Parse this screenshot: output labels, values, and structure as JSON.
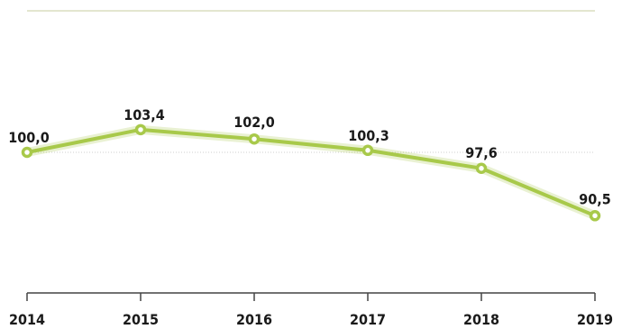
{
  "chart_data": {
    "type": "line",
    "title": "",
    "xlabel": "",
    "ylabel": "",
    "categories": [
      "2014",
      "2015",
      "2016",
      "2017",
      "2018",
      "2019"
    ],
    "series": [
      {
        "values": [
          100.0,
          103.4,
          102.0,
          100.3,
          97.6,
          90.5
        ],
        "labels": [
          "100,0",
          "103,4",
          "102,0",
          "100,3",
          "97,6",
          "90,5"
        ],
        "color": "#a8c94a"
      }
    ],
    "ylim": [
      80,
      120
    ],
    "reference_line": 100,
    "grid": false,
    "legend": "none"
  }
}
